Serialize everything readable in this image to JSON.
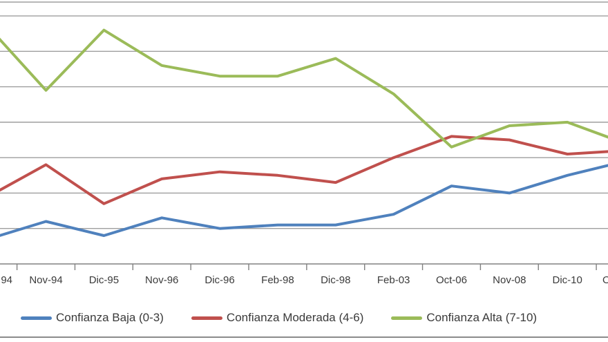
{
  "chart_data": {
    "type": "line",
    "title": "",
    "xlabel": "",
    "ylabel": "",
    "categories": [
      "94",
      "Nov-94",
      "Dic-95",
      "Nov-96",
      "Dic-96",
      "Feb-98",
      "Dic-98",
      "Feb-03",
      "Oct-06",
      "Nov-08",
      "Dic-10",
      "O"
    ],
    "notes": "leftmost and rightmost x labels are cut off by the image crop; y-axis labels are cropped out of view",
    "series": [
      {
        "name": "Confianza Baja (0-3)",
        "color": "#4F81BD",
        "values": [
          7,
          12,
          8,
          13,
          10,
          11,
          11,
          14,
          22,
          20,
          25,
          29
        ]
      },
      {
        "name": "Confianza Moderada (4-6)",
        "color": "#C0504D",
        "values": [
          19,
          28,
          17,
          24,
          26,
          25,
          23,
          30,
          36,
          35,
          31,
          32
        ]
      },
      {
        "name": "Confianza Alta (7-10)",
        "color": "#9BBB59",
        "values": [
          67,
          49,
          66,
          56,
          53,
          53,
          58,
          48,
          33,
          39,
          40,
          34
        ]
      }
    ],
    "y_axis": {
      "min": 0,
      "visible_top": 74,
      "gridline_interval": 10,
      "tick_labels_visible": false
    },
    "x_axis": {
      "tick_marks": 11,
      "labels_between_ticks": true
    },
    "grid": true,
    "legend_position": "bottom",
    "plot_order": [
      "Confianza Baja (0-3)",
      "Confianza Moderada (4-6)",
      "Confianza Alta (7-10)"
    ]
  },
  "legend": {
    "items": [
      {
        "label": "Confianza Baja (0-3)",
        "color": "#4F81BD"
      },
      {
        "label": "Confianza Moderada (4-6)",
        "color": "#C0504D"
      },
      {
        "label": "Confianza Alta (7-10)",
        "color": "#9BBB59"
      }
    ]
  },
  "colors": {
    "background": "#ffffff",
    "gridline": "#9e9e9e",
    "axis": "#808080",
    "axis_label_text": "#3a3a3a",
    "chart_bottom_border": "#8a8a8a"
  }
}
